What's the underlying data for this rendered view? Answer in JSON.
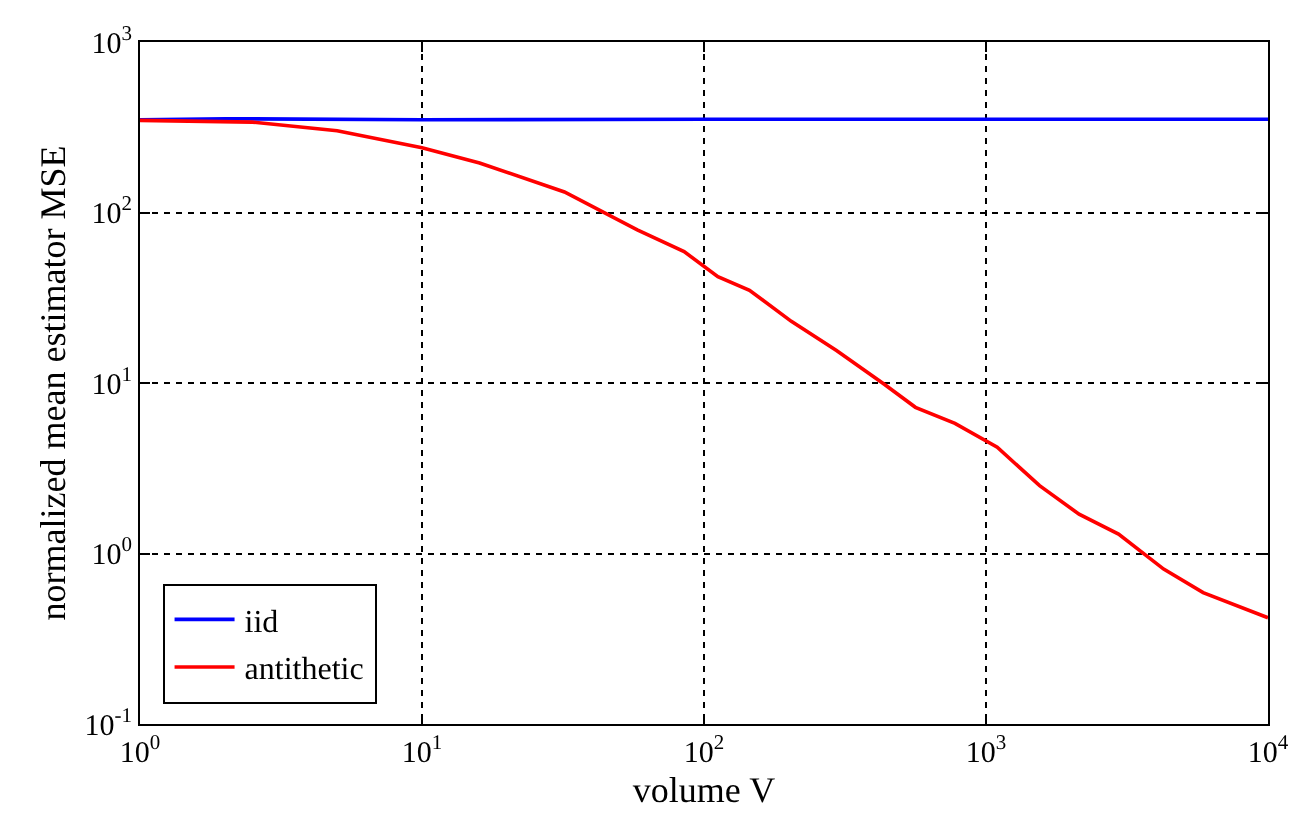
{
  "chart_data": {
    "type": "line",
    "xlabel": "volume V",
    "ylabel": "normalized mean estimator MSE",
    "log": "xy",
    "grid": true,
    "legend": "bottom left",
    "line_style": "solid",
    "marker": "none",
    "xlim": [
      1,
      10000
    ],
    "ylim": [
      0.1,
      1000
    ],
    "xticks": [
      {
        "value": 1,
        "label": "10$^{0}$"
      },
      {
        "value": 10,
        "label": "10$^{1}$"
      },
      {
        "value": 100,
        "label": "10$^{2}$"
      },
      {
        "value": 1000,
        "label": "10$^{3}$"
      },
      {
        "value": 10000,
        "label": "10$^{4}$"
      }
    ],
    "yticks": [
      {
        "value": 0.1,
        "label": "10$^{-1}$"
      },
      {
        "value": 1,
        "label": "10$^{0}$"
      },
      {
        "value": 10,
        "label": "10$^{1}$"
      },
      {
        "value": 100,
        "label": "10$^{2}$"
      },
      {
        "value": 1000,
        "label": "10$^{3}$"
      }
    ],
    "series": [
      {
        "name": "iid",
        "color": "#0000ff",
        "x": [
          1,
          2,
          10,
          100,
          1000,
          10000
        ],
        "values": [
          350,
          355,
          350,
          352,
          352,
          352
        ]
      },
      {
        "name": "antithetic",
        "color": "#ff0000",
        "x": [
          1,
          2.5,
          5,
          10,
          16,
          32,
          58,
          85,
          112,
          145,
          204,
          295,
          437,
          562,
          776,
          1096,
          1549,
          2138,
          2951,
          4266,
          5888,
          10000
        ],
        "values": [
          347,
          339,
          302,
          240,
          195,
          132,
          79,
          59,
          42,
          35,
          23,
          15.5,
          9.8,
          7.2,
          5.8,
          4.2,
          2.5,
          1.7,
          1.3,
          0.81,
          0.59,
          0.42
        ]
      }
    ]
  }
}
